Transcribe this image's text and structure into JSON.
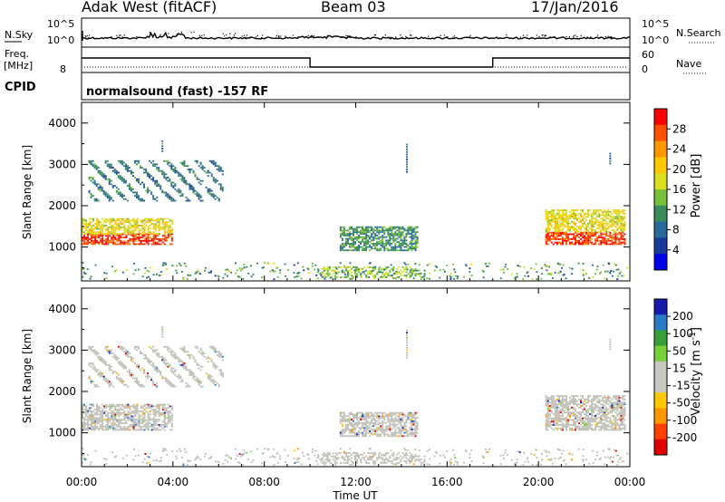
{
  "header": {
    "station": "Adak West (fitACF)",
    "beam": "Beam 03",
    "date": "17/Jan/2016"
  },
  "noise_panel": {
    "left_label": "N.Sky",
    "right_label": "N.Search",
    "left_ticks": [
      "10^5",
      "10^0"
    ],
    "right_ticks": [
      "10^5",
      "10^0"
    ]
  },
  "freq_panel": {
    "left_label_line1": "Freq.",
    "left_label_line2": "[MHz]",
    "left_tick": "8",
    "right_label": "Nave",
    "right_ticks": [
      "60",
      "0"
    ],
    "cpid_label": "CPID",
    "mode_text": "normalsound (fast) -157 RF",
    "freq_steps": [
      {
        "from_hour": 0,
        "to_hour": 10,
        "level": "high"
      },
      {
        "from_hour": 10,
        "to_hour": 18,
        "level": "low"
      },
      {
        "from_hour": 18,
        "to_hour": 24,
        "level": "high"
      }
    ]
  },
  "power_panel": {
    "ylabel": "Slant Range [km]",
    "colorbar_label": "Power [dB]",
    "colorbar_ticks": [
      "28",
      "24",
      "20",
      "16",
      "12",
      "8",
      "4"
    ],
    "colorbar_colors": [
      "#ff0000",
      "#ff5000",
      "#ff9800",
      "#ffc800",
      "#d8e020",
      "#78c038",
      "#3a8a5a",
      "#2a6a9a",
      "#1a3a9a",
      "#0000e8"
    ]
  },
  "velocity_panel": {
    "ylabel": "Slant Range [km]",
    "colorbar_label": "Velocity [m s^-1]",
    "colorbar_ticks": [
      "200",
      "100",
      "50",
      "15",
      "-15",
      "-50",
      "-100",
      "-200"
    ],
    "colorbar_colors": [
      "#1a1aaa",
      "#2a7ac8",
      "#38a038",
      "#78d038",
      "#c8c8c0",
      "#c8c8c0",
      "#ffc800",
      "#ff9800",
      "#ff4000",
      "#e00000"
    ],
    "ground_scatter_color": "#c0c0b8"
  },
  "chart_data": {
    "type": "heatmap",
    "xlabel": "Time UT",
    "x_ticks": [
      "00:00",
      "04:00",
      "08:00",
      "12:00",
      "16:00",
      "20:00",
      "00:00"
    ],
    "xlim_hours": [
      0,
      24
    ],
    "ylim_km": [
      180,
      4500
    ],
    "y_ticks": [
      "1000",
      "2000",
      "3000",
      "4000"
    ],
    "scatter_regions": [
      {
        "t0": 0.0,
        "t1": 4.0,
        "r0": 1050,
        "r1": 1300,
        "power_db": 28,
        "type": "ionospheric"
      },
      {
        "t0": 0.0,
        "t1": 4.0,
        "r0": 1300,
        "r1": 1700,
        "power_db": 18,
        "type": "ionospheric"
      },
      {
        "t0": 0.3,
        "t1": 6.2,
        "r0": 2100,
        "r1": 3100,
        "power_db": 8,
        "type": "ionospheric"
      },
      {
        "t0": 11.3,
        "t1": 14.7,
        "r0": 900,
        "r1": 1500,
        "power_db": 10,
        "type": "ionospheric"
      },
      {
        "t0": 20.3,
        "t1": 23.8,
        "r0": 1050,
        "r1": 1350,
        "power_db": 28,
        "type": "ionospheric"
      },
      {
        "t0": 20.3,
        "t1": 23.8,
        "r0": 1350,
        "r1": 1900,
        "power_db": 18,
        "type": "ionospheric"
      },
      {
        "t0": 10.5,
        "t1": 15.0,
        "r0": 250,
        "r1": 500,
        "power_db": 14,
        "type": "ground"
      }
    ]
  }
}
